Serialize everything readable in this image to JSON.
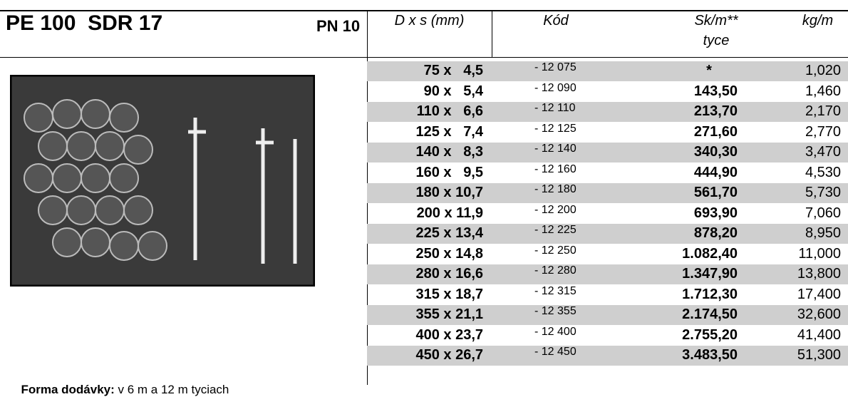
{
  "header": {
    "title": "PE 100  SDR 17",
    "pressure": "PN 10",
    "columns": [
      "D x s (mm)",
      "Kód",
      "Sk/m**",
      "kg/m"
    ],
    "price_sub": "tyce"
  },
  "table": {
    "rows": [
      [
        "75 x   4,5",
        "- 12 075",
        "*",
        "1,020"
      ],
      [
        "90 x   5,4",
        "- 12 090",
        "143,50",
        "1,460"
      ],
      [
        "110 x   6,6",
        "- 12 110",
        "213,70",
        "2,170"
      ],
      [
        "125 x   7,4",
        "- 12 125",
        "271,60",
        "2,770"
      ],
      [
        "140 x   8,3",
        "- 12 140",
        "340,30",
        "3,470"
      ],
      [
        "160 x   9,5",
        "- 12 160",
        "444,90",
        "4,530"
      ],
      [
        "180 x 10,7",
        "- 12 180",
        "561,70",
        "5,730"
      ],
      [
        "200 x 11,9",
        "- 12 200",
        "693,90",
        "7,060"
      ],
      [
        "225 x 13,4",
        "- 12 225",
        "878,20",
        "8,950"
      ],
      [
        "250 x 14,8",
        "- 12 250",
        "1.082,40",
        "11,000"
      ],
      [
        "280 x 16,6",
        "- 12 280",
        "1.347,90",
        "13,800"
      ],
      [
        "315 x 18,7",
        "- 12 315",
        "1.712,30",
        "17,400"
      ],
      [
        "355 x 21,1",
        "- 12 355",
        "2.174,50",
        "32,600"
      ],
      [
        "400 x 23,7",
        "- 12 400",
        "2.755,20",
        "41,400"
      ],
      [
        "450 x 26,7",
        "- 12 450",
        "3.483,50",
        "51,300"
      ]
    ]
  },
  "footer": {
    "label": "Forma dodávky:",
    "text": "v 6 m a 12 m tyciach"
  }
}
